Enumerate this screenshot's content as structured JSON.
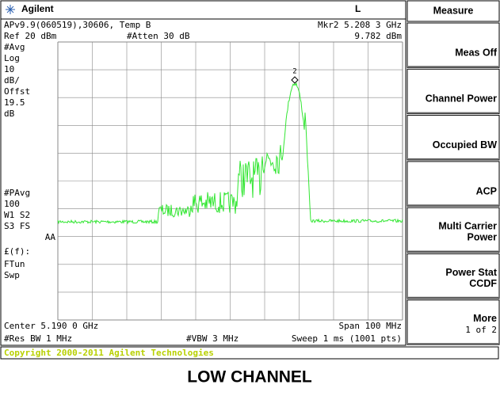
{
  "header": {
    "brand": "Agilent",
    "mode": "L"
  },
  "info": {
    "version": "APv9.9(060519),30606, Temp B",
    "ref": "Ref 20 dBm",
    "atten": "#Atten 30 dB",
    "marker": "Mkr2  5.208 3 GHz",
    "marker_level": "9.782 dBm"
  },
  "left_labels": [
    "#Avg",
    "Log",
    "10",
    "dB/",
    "Offst",
    "19.5",
    "dB",
    "#PAvg",
    "100",
    "W1  S2",
    "S3  FS",
    "AA",
    "£(f):",
    "FTun",
    "Swp"
  ],
  "marker_label": "2",
  "bottom": {
    "center": "Center 5.190 0 GHz",
    "span": "Span 100 MHz",
    "rbw": "#Res BW 1 MHz",
    "vbw": "#VBW 3 MHz",
    "sweep": "Sweep 1 ms (1001 pts)"
  },
  "menu": {
    "title": "Measure",
    "buttons": [
      [
        "Meas Off"
      ],
      [
        "Channel Power"
      ],
      [
        "Occupied BW"
      ],
      [
        "ACP"
      ],
      [
        "Multi Carrier",
        "Power"
      ],
      [
        "Power Stat",
        "CCDF"
      ],
      [
        "More",
        "1 of 2"
      ]
    ]
  },
  "copyright": "Copyright 2000-2011 Agilent Technologies",
  "caption": "LOW CHANNEL"
}
